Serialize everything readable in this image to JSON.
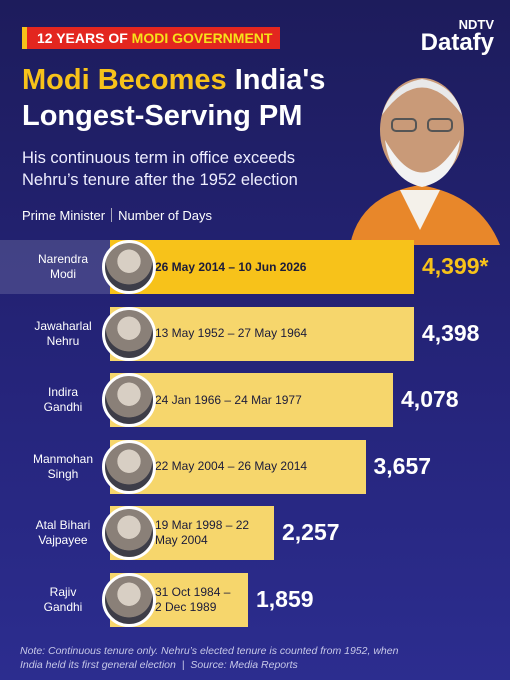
{
  "chart_data": {
    "type": "bar",
    "badge": "12 YEARS OF ",
    "badge_highlight": "MODI GOVERNMENT",
    "brand": "NDTV",
    "brand_sub": "Datafy",
    "title_highlight": "Modi Becomes",
    "title": "India's Longest-Serving PM",
    "subtitle": "His continuous term in office exceeds Nehru’s tenure after the 1952 election",
    "category_header": "Prime Minister",
    "value_header": "Number of Days",
    "categories": [
      "Narendra Modi",
      "Jawaharlal Nehru",
      "Indira Gandhi",
      "Manmohan Singh",
      "Atal Bihari Vajpayee",
      "Rajiv Gandhi"
    ],
    "date_labels": [
      "26 May 2014 – 10 Jun 2026",
      "13 May 1952 – 27 May 1964",
      "24 Jan 1966 – 24 Mar 1977",
      "22 May 2004 – 26 May 2014",
      "19 Mar 1998 – 22 May 2004",
      "31 Oct 1984 – 2 Dec 1989"
    ],
    "values": [
      4399,
      4398,
      4078,
      3657,
      2257,
      1859
    ],
    "value_labels": [
      "4,399*",
      "4,398",
      "4,078",
      "3,657",
      "2,257",
      "1,859"
    ],
    "highlight_color": "#f7c21a",
    "color": "#f6d66c",
    "note": "Note: Continuous tenure only. Nehru’s elected tenure is counted from 1952, when India held its first general election",
    "source": "Source: Media Reports"
  }
}
